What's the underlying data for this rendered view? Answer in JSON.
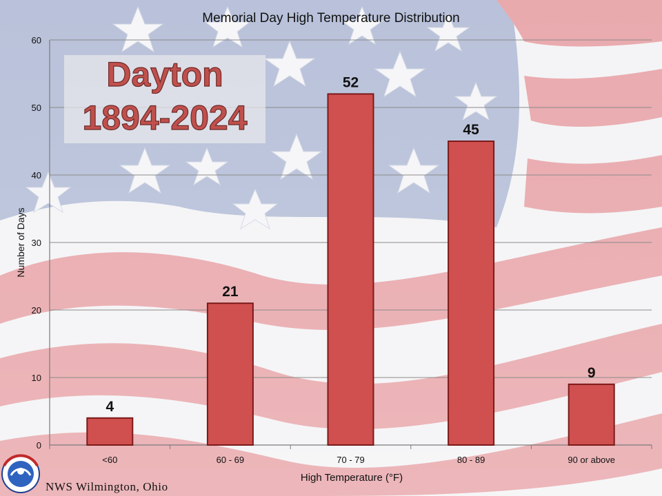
{
  "chart_data": {
    "type": "bar",
    "title": "Memorial Day High Temperature Distribution",
    "xlabel": "High Temperature (°F)",
    "ylabel": "Number of Days",
    "categories": [
      "<60",
      "60 - 69",
      "70 - 79",
      "80 - 89",
      "90 or above"
    ],
    "values": [
      4,
      21,
      52,
      45,
      9
    ],
    "ylim": [
      0,
      60
    ],
    "yticks": [
      0,
      10,
      20,
      30,
      40,
      50,
      60
    ],
    "grid": true,
    "legend": "none",
    "bar_color": "#d0504f",
    "bar_edge_color": "#7a1a1a"
  },
  "overlay": {
    "line1": "Dayton",
    "line2": "1894-2024",
    "text_color": "#c0504d"
  },
  "footer": {
    "credit": "NWS Wilmington, Ohio",
    "logo_text": "NATIONAL WEATHER SERVICE"
  },
  "colors": {
    "stripe_red": "#e8a8ac",
    "canton_blue": "#b7c0d8",
    "stripe_white": "#f4f4f6"
  }
}
